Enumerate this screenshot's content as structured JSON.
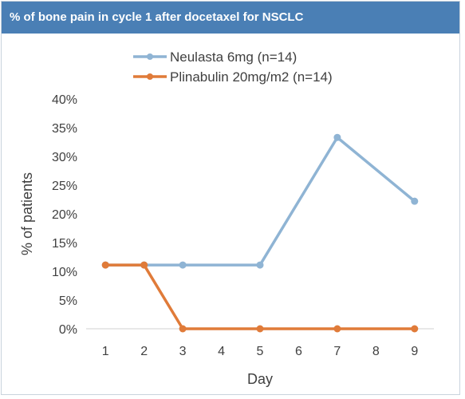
{
  "header": {
    "title": "% of bone pain in cycle 1 after docetaxel for NSCLC"
  },
  "chart_data": {
    "type": "line",
    "title": "% of bone pain in cycle 1 after docetaxel for NSCLC",
    "xlabel": "Day",
    "ylabel": "% of patients",
    "categories": [
      "1",
      "2",
      "3",
      "4",
      "5",
      "6",
      "7",
      "8",
      "9"
    ],
    "ylim": [
      0,
      40
    ],
    "yticks": [
      "0%",
      "5%",
      "10%",
      "15%",
      "20%",
      "25%",
      "30%",
      "35%",
      "40%"
    ],
    "grid": false,
    "legend_position": "top",
    "series": [
      {
        "name": "Neulasta 6mg (n=14)",
        "color": "#8fb4d4",
        "points": [
          [
            1,
            11.1
          ],
          [
            2,
            11.1
          ],
          [
            3,
            11.1
          ],
          [
            5,
            11.1
          ],
          [
            7,
            33.3
          ],
          [
            9,
            22.2
          ]
        ]
      },
      {
        "name": "Plinabulin 20mg/m2 (n=14)",
        "color": "#e07b39",
        "points": [
          [
            1,
            11.1
          ],
          [
            2,
            11.1
          ],
          [
            3,
            0
          ],
          [
            5,
            0
          ],
          [
            7,
            0
          ],
          [
            9,
            0
          ]
        ]
      }
    ]
  }
}
